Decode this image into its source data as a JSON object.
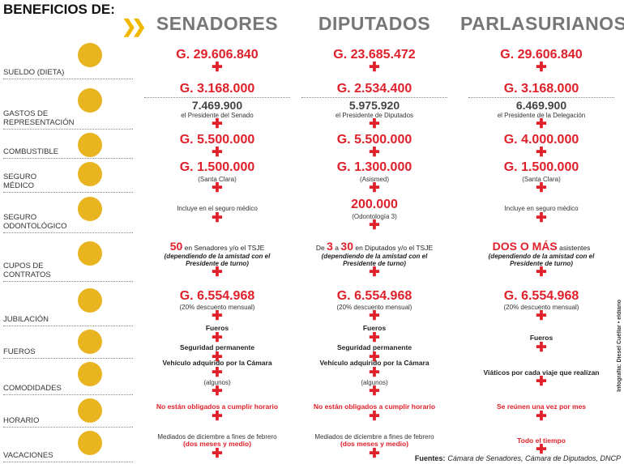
{
  "header": {
    "title": "BENEFICIOS DE:"
  },
  "columns": [
    "SENADORES",
    "DIPUTADOS",
    "PARLASURIANOS"
  ],
  "rows": [
    {
      "label": "SUELDO (DIETA)",
      "cells": [
        [
          {
            "amount": "G. 29.606.840"
          }
        ],
        [
          {
            "amount": "G. 23.685.472"
          }
        ],
        [
          {
            "amount": "G. 29.606.840"
          }
        ]
      ]
    },
    {
      "label": "GASTOS DE REPRESENTACIÓN",
      "cells": [
        [
          {
            "amount": "G. 3.168.000"
          },
          {
            "extra": "7.469.900"
          },
          {
            "note": "el Presidente del Senado"
          }
        ],
        [
          {
            "amount": "G. 2.534.400"
          },
          {
            "extra": "5.975.920"
          },
          {
            "note": "el Presidente de Diputados"
          }
        ],
        [
          {
            "amount": "G. 3.168.000"
          },
          {
            "extra": "6.469.900"
          },
          {
            "note": "el Presidente de la Delegación"
          }
        ]
      ]
    },
    {
      "label": "COMBUSTIBLE",
      "cells": [
        [
          {
            "amount": "G. 5.500.000"
          }
        ],
        [
          {
            "amount": "G. 5.500.000"
          }
        ],
        [
          {
            "amount": "G. 4.000.000"
          }
        ]
      ]
    },
    {
      "label": "SEGURO MÉDICO",
      "cells": [
        [
          {
            "amount": "G. 1.500.000"
          },
          {
            "note": "(Santa Clara)"
          }
        ],
        [
          {
            "amount": "G. 1.300.000"
          },
          {
            "note": "(Asismed)"
          }
        ],
        [
          {
            "amount": "G. 1.500.000"
          },
          {
            "note": "(Santa Clara)"
          }
        ]
      ]
    },
    {
      "label": "SEGURO ODONTOLÓGICO",
      "cells": [
        [
          {
            "note": "Incluye en el seguro médico"
          }
        ],
        [
          {
            "amount": "200.000"
          },
          {
            "note": "(Odontología 3)"
          }
        ],
        [
          {
            "note": "Incluye en seguro médico"
          }
        ]
      ]
    },
    {
      "label": "CUPOS DE CONTRATOS",
      "cells": [
        [
          {
            "lead": "50",
            "text": "en Senadores y/o el TSJE"
          },
          {
            "cond": "(dependiendo de la amistad con el Presidente de turno)"
          }
        ],
        [
          {
            "pre": "De",
            "lead": "3",
            "mid": "a",
            "lead2": "30",
            "text": "en Diputados y/o el TSJE"
          },
          {
            "cond": "(dependiendo de la amistad con el Presidente de turno)"
          }
        ],
        [
          {
            "lead": "DOS O MÁS",
            "text": "asistentes"
          },
          {
            "cond": "(dependiendo de la amistad con el Presidente de turno)"
          }
        ]
      ]
    },
    {
      "label": "JUBILACIÓN",
      "cells": [
        [
          {
            "amount": "G. 6.554.968"
          },
          {
            "note": "(20% descuento mensual)"
          }
        ],
        [
          {
            "amount": "G. 6.554.968"
          },
          {
            "note": "(20% descuento mensual)"
          }
        ],
        [
          {
            "amount": "G. 6.554.968"
          },
          {
            "note": "(20% descuento mensual)"
          }
        ]
      ]
    },
    {
      "label": "FUEROS",
      "cells": [
        [
          {
            "bold": "Fueros"
          },
          {
            "bold": "Seguridad permanente"
          }
        ],
        [
          {
            "bold": "Fueros"
          },
          {
            "bold": "Seguridad permanente"
          }
        ],
        [
          {
            "bold": "Fueros"
          }
        ]
      ]
    },
    {
      "label": "COMODIDADES",
      "cells": [
        [
          {
            "bold": "Vehículo adquirido por la Cámara"
          },
          {
            "note": "(algunos)"
          }
        ],
        [
          {
            "bold": "Vehículo adquirido por la Cámara"
          },
          {
            "note": "(algunos)"
          }
        ],
        [
          {
            "bold": "Viáticos por cada viaje que realizan"
          }
        ]
      ]
    },
    {
      "label": "HORARIO",
      "cells": [
        [
          {
            "red": "No están obligados a cumplir horario"
          }
        ],
        [
          {
            "red": "No están obligados a cumplir horario"
          }
        ],
        [
          {
            "red": "Se reúnen una vez por mes"
          }
        ]
      ]
    },
    {
      "label": "VACACIONES",
      "cells": [
        [
          {
            "note": "Mediados de diciembre a fines de febrero",
            "red": "(dos meses y medio)"
          }
        ],
        [
          {
            "note": "Mediados de diciembre a fines de febrero",
            "red": "(dos meses y medio)"
          }
        ],
        [
          {
            "red": "Todo el tiempo"
          }
        ]
      ]
    }
  ],
  "credit": "Infografía: Diesel Cuéllar • eldiario",
  "sources": {
    "label": "Fuentes:",
    "text": "Cámara de Senadores, Cámara de Diputados, DNCP"
  }
}
